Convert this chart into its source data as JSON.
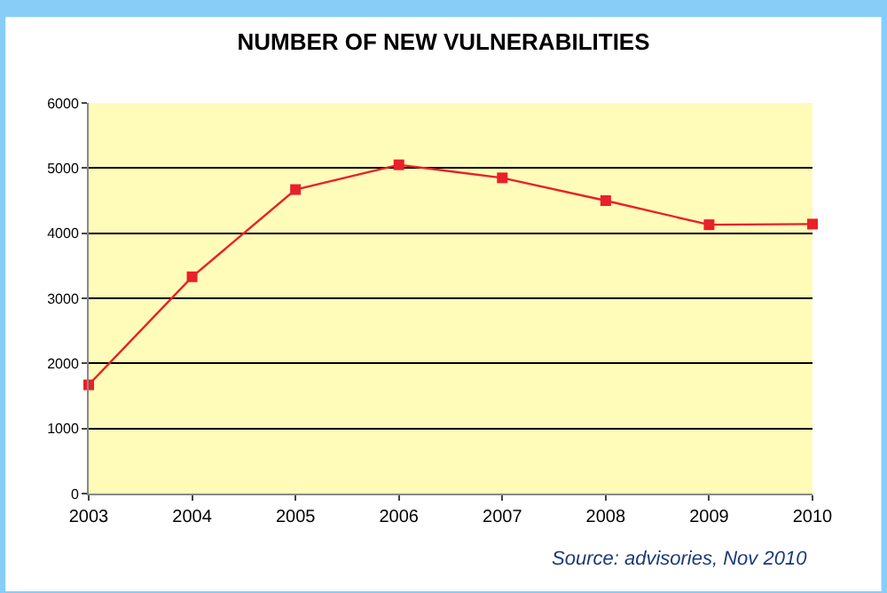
{
  "chart_data": {
    "type": "line",
    "title": "NUMBER OF NEW VULNERABILITIES",
    "x": [
      2003,
      2004,
      2005,
      2006,
      2007,
      2008,
      2009,
      2010
    ],
    "series": [
      {
        "color": "#e8202a",
        "values": [
          1670,
          3330,
          4670,
          5050,
          4850,
          4500,
          4130,
          4140
        ]
      }
    ],
    "xlim": [
      2003,
      2010
    ],
    "xticks": [
      2003,
      2004,
      2005,
      2006,
      2007,
      2008,
      2009,
      2010
    ],
    "ylim": [
      0,
      6000
    ],
    "yticks": [
      0,
      1000,
      2000,
      3000,
      4000,
      5000,
      6000
    ],
    "grid": "y",
    "marker": "square",
    "line_style": "solid",
    "annotations": [
      "Source: advisories, Nov 2010"
    ]
  }
}
